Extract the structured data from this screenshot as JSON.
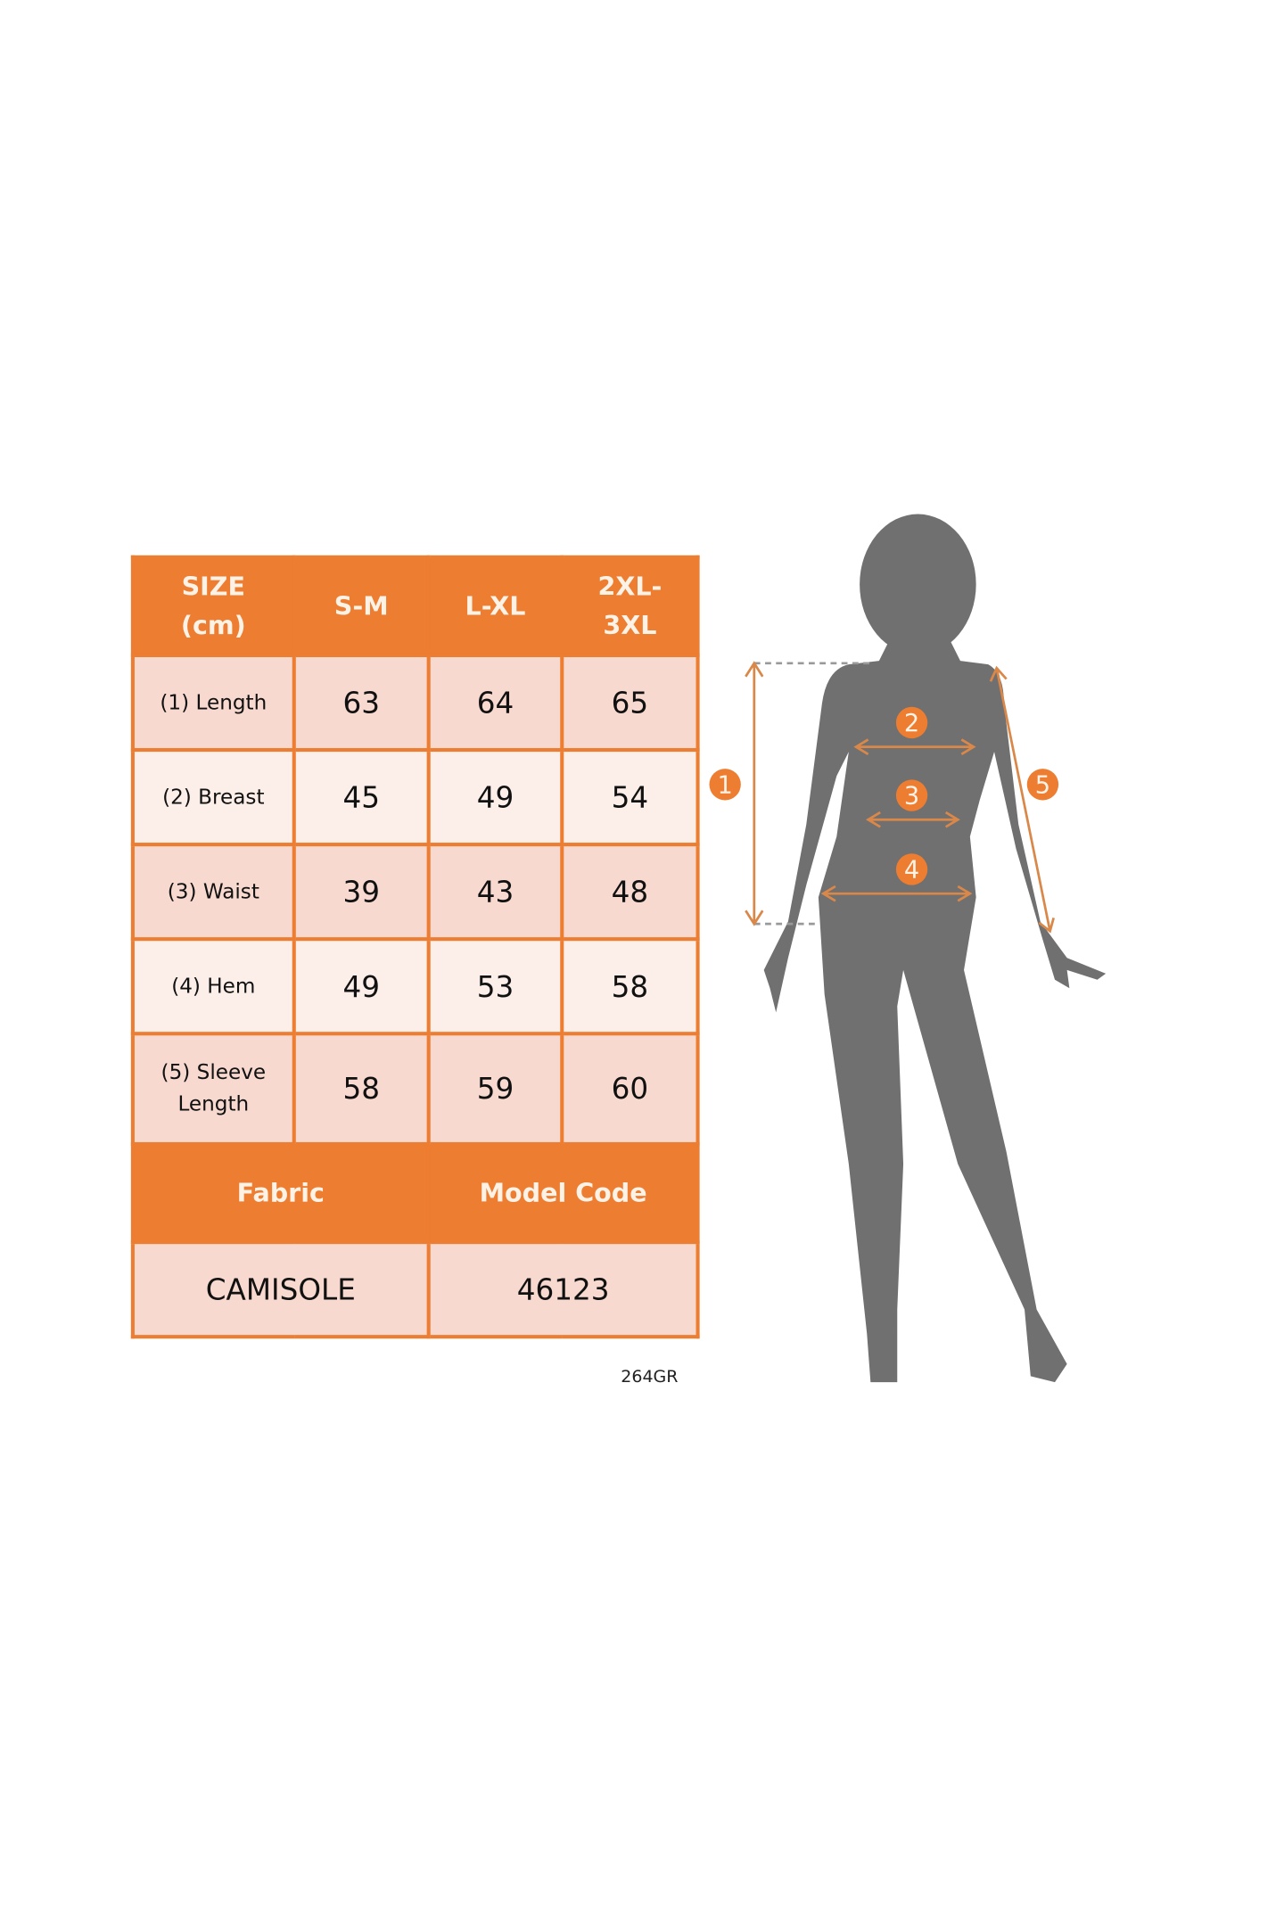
{
  "table": {
    "header": [
      "SIZE (cm)",
      "S-M",
      "L-XL",
      "2XL-3XL"
    ],
    "header_lines": [
      [
        "SIZE",
        "(cm)"
      ],
      [
        "S-M"
      ],
      [
        "L-XL"
      ],
      [
        "2XL-",
        "3XL"
      ]
    ],
    "rows": [
      {
        "label": "(1) Length",
        "values": [
          "63",
          "64",
          "65"
        ]
      },
      {
        "label": "(2) Breast",
        "values": [
          "45",
          "49",
          "54"
        ]
      },
      {
        "label": "(3) Waist",
        "values": [
          "39",
          "43",
          "48"
        ]
      },
      {
        "label": "(4) Hem",
        "values": [
          "49",
          "53",
          "58"
        ]
      },
      {
        "label_lines": [
          "(5) Sleeve",
          "Length"
        ],
        "values": [
          "58",
          "59",
          "60"
        ]
      }
    ],
    "fabric_header": "Fabric",
    "model_code_header": "Model Code",
    "fabric": "CAMISOLE",
    "model_code": "46123"
  },
  "code_label": "264GR",
  "figure": {
    "markers": [
      "1",
      "2",
      "3",
      "4",
      "5"
    ],
    "silhouette_color": "#707070",
    "accent_color": "#ED7D31"
  }
}
